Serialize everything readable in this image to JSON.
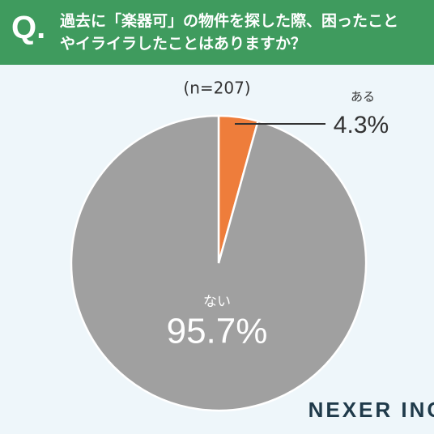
{
  "header": {
    "mark": "Q."
  },
  "logo": "NEXER INC.",
  "chart_data": {
    "type": "pie",
    "title": "過去に「楽器可」の物件を探した際、困ったことやイライラしたことはありますか？",
    "subtitle": "(n=207)",
    "categories": [
      "ある",
      "ない"
    ],
    "values": [
      4.3,
      95.7
    ],
    "value_labels": [
      "4.3%",
      "95.7%"
    ],
    "colors": [
      "#ee7d3b",
      "#a0a0a0"
    ]
  }
}
